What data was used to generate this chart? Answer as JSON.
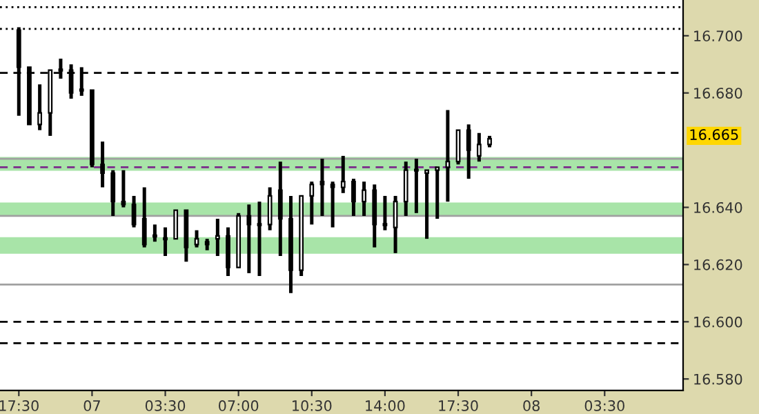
{
  "chart_data": {
    "type": "candlestick",
    "categories": [
      "17:30",
      null,
      null,
      null,
      null,
      null,
      null,
      "07",
      null,
      null,
      null,
      null,
      null,
      null,
      "03:30",
      null,
      null,
      null,
      null,
      null,
      null,
      "07:00",
      null,
      null,
      null,
      null,
      null,
      null,
      "10:30",
      null,
      null,
      null,
      null,
      null,
      null,
      "14:00",
      null,
      null,
      null,
      null,
      null,
      null,
      "17:30",
      null,
      null,
      null,
      null,
      null,
      null,
      "08",
      null,
      null,
      null,
      null,
      null,
      null,
      "03:30",
      null,
      null,
      null,
      null,
      null,
      null,
      null
    ],
    "ohlc": [
      [
        16.702,
        16.703,
        16.672,
        16.689
      ],
      [
        16.689,
        16.689,
        16.669,
        16.669
      ],
      [
        16.669,
        16.683,
        16.667,
        16.673
      ],
      [
        16.673,
        16.688,
        16.665,
        16.688
      ],
      [
        16.688,
        16.692,
        16.685,
        16.688
      ],
      [
        16.688,
        16.69,
        16.678,
        16.68
      ],
      [
        16.681,
        16.689,
        16.679,
        16.681
      ],
      [
        16.681,
        16.681,
        16.654,
        16.655
      ],
      [
        16.655,
        16.663,
        16.647,
        16.652
      ],
      [
        16.652,
        16.653,
        16.637,
        16.642
      ],
      [
        16.642,
        16.653,
        16.64,
        16.641
      ],
      [
        16.641,
        16.644,
        16.633,
        16.634
      ],
      [
        16.636,
        16.647,
        16.626,
        16.627
      ],
      [
        16.63,
        16.634,
        16.628,
        16.63
      ],
      [
        16.629,
        16.633,
        16.623,
        16.629
      ],
      [
        16.629,
        16.639,
        16.629,
        16.639
      ],
      [
        16.639,
        16.639,
        16.621,
        16.626
      ],
      [
        16.627,
        16.632,
        16.626,
        16.629
      ],
      [
        16.628,
        16.629,
        16.625,
        16.627
      ],
      [
        16.629,
        16.636,
        16.623,
        16.63
      ],
      [
        16.63,
        16.633,
        16.616,
        16.619
      ],
      [
        16.619,
        16.638,
        16.619,
        16.637
      ],
      [
        16.637,
        16.641,
        16.617,
        16.634
      ],
      [
        16.634,
        16.642,
        16.616,
        16.634
      ],
      [
        16.634,
        16.647,
        16.632,
        16.644
      ],
      [
        16.646,
        16.656,
        16.623,
        16.636
      ],
      [
        16.636,
        16.644,
        16.61,
        16.618
      ],
      [
        16.618,
        16.644,
        16.616,
        16.644
      ],
      [
        16.644,
        16.649,
        16.634,
        16.648
      ],
      [
        16.649,
        16.657,
        16.637,
        16.648
      ],
      [
        16.648,
        16.649,
        16.633,
        16.647
      ],
      [
        16.647,
        16.658,
        16.645,
        16.649
      ],
      [
        16.649,
        16.65,
        16.637,
        16.642
      ],
      [
        16.642,
        16.649,
        16.637,
        16.646
      ],
      [
        16.646,
        16.648,
        16.626,
        16.634
      ],
      [
        16.634,
        16.644,
        16.632,
        16.634
      ],
      [
        16.633,
        16.644,
        16.624,
        16.642
      ],
      [
        16.642,
        16.656,
        16.637,
        16.653
      ],
      [
        16.653,
        16.657,
        16.638,
        16.653
      ],
      [
        16.652,
        16.653,
        16.629,
        16.653
      ],
      [
        16.653,
        16.654,
        16.636,
        16.654
      ],
      [
        16.654,
        16.674,
        16.642,
        16.656
      ],
      [
        16.656,
        16.667,
        16.655,
        16.667
      ],
      [
        16.667,
        16.669,
        16.65,
        16.66
      ],
      [
        16.658,
        16.666,
        16.656,
        16.662
      ],
      [
        16.662,
        16.665,
        16.661,
        16.664
      ],
      null,
      null,
      null,
      null,
      null,
      null,
      null,
      null,
      null,
      null,
      null,
      null,
      null,
      null,
      null,
      null,
      null,
      null
    ],
    "color": "#000000",
    "ylim": [
      16.576,
      16.7125
    ],
    "yticks": [
      {
        "value": 16.58,
        "label": "16.580"
      },
      {
        "value": 16.6,
        "label": "16.600"
      },
      {
        "value": 16.62,
        "label": "16.620"
      },
      {
        "value": 16.64,
        "label": "16.640"
      },
      {
        "value": 16.68,
        "label": "16.680"
      },
      {
        "value": 16.7,
        "label": "16.700"
      }
    ],
    "ref_lines": [
      {
        "axis": "y",
        "value": 16.71,
        "color": "#000000",
        "line_style": "dotted"
      },
      {
        "axis": "y",
        "value": 16.7024,
        "color": "#000000",
        "line_style": "dotted"
      },
      {
        "axis": "y",
        "value": 16.687,
        "color": "#000000",
        "line_style": "dashed"
      },
      {
        "axis": "y",
        "value": 16.657,
        "color": "#a0a0a0",
        "line_style": "solid"
      },
      {
        "axis": "y",
        "value": 16.654,
        "color": "#7a2a8a",
        "line_style": "dashed"
      },
      {
        "axis": "y",
        "value": 16.637,
        "color": "#a0a0a0",
        "line_style": "solid"
      },
      {
        "axis": "y",
        "value": 16.613,
        "color": "#a0a0a0",
        "line_style": "solid"
      },
      {
        "axis": "y",
        "value": 16.6,
        "color": "#000000",
        "line_style": "dashed"
      },
      {
        "axis": "y",
        "value": 16.5925,
        "color": "#000000",
        "line_style": "dashed"
      }
    ],
    "bands": [
      {
        "axis": "y",
        "from": 16.6528,
        "to": 16.6576,
        "color": "#a8e4a8"
      },
      {
        "axis": "y",
        "from": 16.6369,
        "to": 16.6417,
        "color": "#a8e4a8"
      },
      {
        "axis": "y",
        "from": 16.6238,
        "to": 16.6296,
        "color": "#a8e4a8"
      }
    ],
    "annotations": [
      {
        "text": "16.665",
        "y": 16.665
      }
    ],
    "grid": false,
    "legend": false
  }
}
